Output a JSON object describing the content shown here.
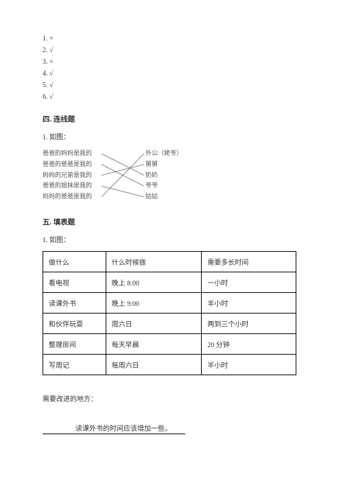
{
  "tf": {
    "items": [
      {
        "num": "1.",
        "mark": "×"
      },
      {
        "num": "2.",
        "mark": "√"
      },
      {
        "num": "3.",
        "mark": "×"
      },
      {
        "num": "4.",
        "mark": "√"
      },
      {
        "num": "5.",
        "mark": "√"
      },
      {
        "num": "6.",
        "mark": "√"
      }
    ]
  },
  "section4": {
    "heading": "四. 连线题",
    "q1": "1. 如图："
  },
  "matching": {
    "left": [
      "爸爸的妈妈是我的",
      "爸爸的爸爸是我的",
      "妈妈的兄弟是我的",
      "爸爸的姐妹是我的",
      "妈妈的爸爸是我的"
    ],
    "right": [
      "外公（姥爷）",
      "舅舅",
      "奶奶",
      "爷爷",
      "姑姑"
    ],
    "lines": [
      {
        "from": 0,
        "to": 2
      },
      {
        "from": 1,
        "to": 3
      },
      {
        "from": 2,
        "to": 1
      },
      {
        "from": 3,
        "to": 4
      },
      {
        "from": 4,
        "to": 0
      }
    ],
    "line_color": "#666666"
  },
  "section5": {
    "heading": "五. 填表题",
    "q1": "1. 如图："
  },
  "table": {
    "headers": [
      "做什么",
      "什么时候做",
      "需要多长时间"
    ],
    "rows": [
      [
        "看电视",
        "晚上 8:00",
        "一小时"
      ],
      [
        "读课外书",
        "晚上 9:00",
        "半小时"
      ],
      [
        "和伙伴玩耍",
        "周六日",
        "两到三个小时"
      ],
      [
        "整理房间",
        "每天早晨",
        "20 分钟"
      ],
      [
        "写周记",
        "每周六日",
        "半小时"
      ]
    ]
  },
  "improve": {
    "label": "需要改进的地方：",
    "answer": "读课外书的时间应该增加一些。"
  }
}
